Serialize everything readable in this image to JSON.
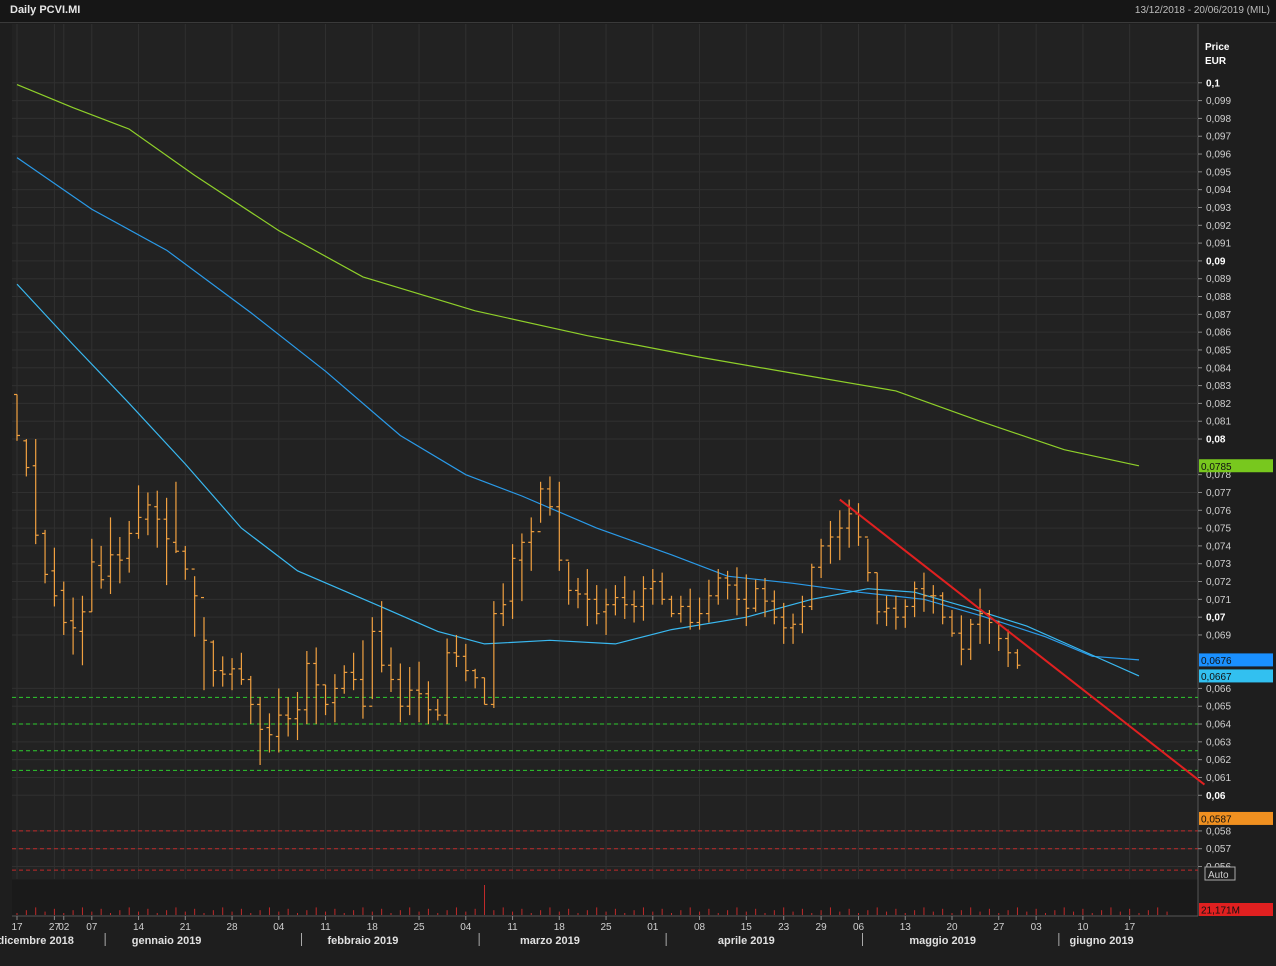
{
  "header": {
    "title": "Daily PCVI.MI",
    "range": "13/12/2018 - 20/06/2019 (MIL)"
  },
  "axis_title": {
    "line1": "Price",
    "line2": "EUR"
  },
  "auto_label": "Auto",
  "colors": {
    "bg": "#1e1e1e",
    "plot": "#222222",
    "grid": "#303030",
    "price": "#f0a040",
    "ma_green": "#8fd02a",
    "ma_blue1": "#2a9ae8",
    "ma_blue2": "#39b8f0",
    "trend": "#e02020",
    "green_dash": "#2ecc2e",
    "red_dash": "#c02a2a"
  },
  "chart_data": {
    "type": "ohlc",
    "title": "Daily PCVI.MI",
    "ylabel": "Price EUR",
    "ylim": [
      0.0553,
      0.1033
    ],
    "y_ticks": [
      {
        "v": 0.1,
        "t": "0,1",
        "bold": true
      },
      {
        "v": 0.099,
        "t": "0,099"
      },
      {
        "v": 0.098,
        "t": "0,098"
      },
      {
        "v": 0.097,
        "t": "0,097"
      },
      {
        "v": 0.096,
        "t": "0,096"
      },
      {
        "v": 0.095,
        "t": "0,095"
      },
      {
        "v": 0.094,
        "t": "0,094"
      },
      {
        "v": 0.093,
        "t": "0,093"
      },
      {
        "v": 0.092,
        "t": "0,092"
      },
      {
        "v": 0.091,
        "t": "0,091"
      },
      {
        "v": 0.09,
        "t": "0,09",
        "bold": true
      },
      {
        "v": 0.089,
        "t": "0,089"
      },
      {
        "v": 0.088,
        "t": "0,088"
      },
      {
        "v": 0.087,
        "t": "0,087"
      },
      {
        "v": 0.086,
        "t": "0,086"
      },
      {
        "v": 0.085,
        "t": "0,085"
      },
      {
        "v": 0.084,
        "t": "0,084"
      },
      {
        "v": 0.083,
        "t": "0,083"
      },
      {
        "v": 0.082,
        "t": "0,082"
      },
      {
        "v": 0.081,
        "t": "0,081"
      },
      {
        "v": 0.08,
        "t": "0,08",
        "bold": true
      },
      {
        "v": 0.078,
        "t": "0,078"
      },
      {
        "v": 0.077,
        "t": "0,077"
      },
      {
        "v": 0.076,
        "t": "0,076"
      },
      {
        "v": 0.075,
        "t": "0,075"
      },
      {
        "v": 0.074,
        "t": "0,074"
      },
      {
        "v": 0.073,
        "t": "0,073"
      },
      {
        "v": 0.072,
        "t": "0,072"
      },
      {
        "v": 0.071,
        "t": "0,071"
      },
      {
        "v": 0.07,
        "t": "0,07",
        "bold": true
      },
      {
        "v": 0.069,
        "t": "0,069"
      },
      {
        "v": 0.066,
        "t": "0,066"
      },
      {
        "v": 0.065,
        "t": "0,065"
      },
      {
        "v": 0.064,
        "t": "0,064"
      },
      {
        "v": 0.063,
        "t": "0,063"
      },
      {
        "v": 0.062,
        "t": "0,062"
      },
      {
        "v": 0.061,
        "t": "0,061"
      },
      {
        "v": 0.06,
        "t": "0,06",
        "bold": true
      },
      {
        "v": 0.058,
        "t": "0,058"
      },
      {
        "v": 0.057,
        "t": "0,057"
      },
      {
        "v": 0.056,
        "t": "0,056"
      }
    ],
    "x_ticks": [
      {
        "i": 0,
        "t": "17"
      },
      {
        "i": 4,
        "t": "27"
      },
      {
        "i": 5,
        "t": "02"
      },
      {
        "i": 8,
        "t": "07"
      },
      {
        "i": 13,
        "t": "14"
      },
      {
        "i": 18,
        "t": "21"
      },
      {
        "i": 23,
        "t": "28"
      },
      {
        "i": 28,
        "t": "04"
      },
      {
        "i": 33,
        "t": "11"
      },
      {
        "i": 38,
        "t": "18"
      },
      {
        "i": 43,
        "t": "25"
      },
      {
        "i": 48,
        "t": "04"
      },
      {
        "i": 53,
        "t": "11"
      },
      {
        "i": 58,
        "t": "18"
      },
      {
        "i": 63,
        "t": "25"
      },
      {
        "i": 68,
        "t": "01"
      },
      {
        "i": 73,
        "t": "08"
      },
      {
        "i": 78,
        "t": "15"
      },
      {
        "i": 82,
        "t": "23"
      },
      {
        "i": 86,
        "t": "29"
      },
      {
        "i": 90,
        "t": "06"
      },
      {
        "i": 95,
        "t": "13"
      },
      {
        "i": 100,
        "t": "20"
      },
      {
        "i": 105,
        "t": "27"
      },
      {
        "i": 109,
        "t": "03"
      },
      {
        "i": 114,
        "t": "10"
      },
      {
        "i": 119,
        "t": "17"
      }
    ],
    "months": [
      {
        "i": 2,
        "t": "dicembre 2018"
      },
      {
        "i": 16,
        "t": "gennaio 2019"
      },
      {
        "i": 37,
        "t": "febbraio 2019"
      },
      {
        "i": 57,
        "t": "marzo 2019"
      },
      {
        "i": 78,
        "t": "aprile 2019"
      },
      {
        "i": 99,
        "t": "maggio 2019"
      },
      {
        "i": 116,
        "t": "giugno 2019"
      }
    ],
    "month_separators": [
      9,
      30,
      49,
      69,
      90,
      111
    ],
    "n_slots": 124,
    "price_bars": [
      [
        0.0825,
        0.0799,
        0.0825,
        0.0802
      ],
      [
        0.08,
        0.0779,
        0.0799,
        0.0784
      ],
      [
        0.08,
        0.0741,
        0.0785,
        0.0746
      ],
      [
        0.0749,
        0.0719,
        0.0747,
        0.0724
      ],
      [
        0.0739,
        0.0706,
        0.0726,
        0.0712
      ],
      [
        0.072,
        0.069,
        0.0715,
        0.0697
      ],
      [
        0.0711,
        0.0679,
        0.0698,
        0.0694
      ],
      [
        0.0712,
        0.0673,
        0.0692,
        0.0703
      ],
      [
        0.0744,
        0.0703,
        0.0703,
        0.0731
      ],
      [
        0.074,
        0.0716,
        0.0729,
        0.0721
      ],
      [
        0.0756,
        0.0713,
        0.0723,
        0.0735
      ],
      [
        0.0745,
        0.0719,
        0.0735,
        0.0732
      ],
      [
        0.0754,
        0.0725,
        0.0733,
        0.0747
      ],
      [
        0.0774,
        0.0744,
        0.0747,
        0.0756
      ],
      [
        0.077,
        0.0746,
        0.0755,
        0.0763
      ],
      [
        0.0771,
        0.0739,
        0.0762,
        0.0755
      ],
      [
        0.0767,
        0.0718,
        0.0755,
        0.0744
      ],
      [
        0.0776,
        0.0736,
        0.0742,
        0.0737
      ],
      [
        0.074,
        0.0721,
        0.0737,
        0.0727
      ],
      [
        0.0723,
        0.0689,
        0.0727,
        0.0712
      ],
      [
        0.07,
        0.0659,
        0.0711,
        0.0687
      ],
      [
        0.0687,
        0.0661,
        0.0686,
        0.067
      ],
      [
        0.0678,
        0.0661,
        0.067,
        0.0668
      ],
      [
        0.0677,
        0.0659,
        0.0668,
        0.0671
      ],
      [
        0.068,
        0.0662,
        0.0671,
        0.0665
      ],
      [
        0.0667,
        0.064,
        0.0665,
        0.0651
      ],
      [
        0.0655,
        0.0617,
        0.0651,
        0.0637
      ],
      [
        0.0646,
        0.0624,
        0.0638,
        0.0634
      ],
      [
        0.066,
        0.0624,
        0.0633,
        0.0645
      ],
      [
        0.0655,
        0.0633,
        0.0645,
        0.0643
      ],
      [
        0.0658,
        0.0631,
        0.0643,
        0.0648
      ],
      [
        0.0681,
        0.064,
        0.0648,
        0.0674
      ],
      [
        0.0683,
        0.064,
        0.0674,
        0.0662
      ],
      [
        0.0662,
        0.0645,
        0.0662,
        0.0651
      ],
      [
        0.0668,
        0.0641,
        0.0652,
        0.066
      ],
      [
        0.0673,
        0.0657,
        0.066,
        0.0669
      ],
      [
        0.068,
        0.0659,
        0.0669,
        0.0665
      ],
      [
        0.0687,
        0.0643,
        0.0665,
        0.065
      ],
      [
        0.07,
        0.0654,
        0.065,
        0.0692
      ],
      [
        0.0709,
        0.0669,
        0.0692,
        0.0673
      ],
      [
        0.0683,
        0.0658,
        0.0673,
        0.0665
      ],
      [
        0.0674,
        0.0641,
        0.0665,
        0.065
      ],
      [
        0.0672,
        0.0645,
        0.065,
        0.0659
      ],
      [
        0.0675,
        0.0641,
        0.0659,
        0.0657
      ],
      [
        0.0664,
        0.064,
        0.0657,
        0.0648
      ],
      [
        0.0654,
        0.0642,
        0.0648,
        0.0645
      ],
      [
        0.0688,
        0.064,
        0.0645,
        0.068
      ],
      [
        0.069,
        0.0672,
        0.068,
        0.0678
      ],
      [
        0.0685,
        0.0664,
        0.0678,
        0.067
      ],
      [
        0.0671,
        0.066,
        0.067,
        0.0666
      ],
      [
        0.0666,
        0.0651,
        0.0666,
        0.0651
      ],
      [
        0.0709,
        0.0649,
        0.0651,
        0.0702
      ],
      [
        0.0719,
        0.0695,
        0.0702,
        0.0707
      ],
      [
        0.0741,
        0.0699,
        0.0709,
        0.0733
      ],
      [
        0.0747,
        0.0709,
        0.0732,
        0.0742
      ],
      [
        0.0756,
        0.0726,
        0.0742,
        0.0748
      ],
      [
        0.0776,
        0.0753,
        0.0748,
        0.0772
      ],
      [
        0.0779,
        0.0757,
        0.0772,
        0.0762
      ],
      [
        0.0776,
        0.0726,
        0.0762,
        0.0732
      ],
      [
        0.0731,
        0.0707,
        0.0732,
        0.0715
      ],
      [
        0.0722,
        0.0705,
        0.0715,
        0.0713
      ],
      [
        0.0727,
        0.0695,
        0.0713,
        0.071
      ],
      [
        0.0718,
        0.0696,
        0.071,
        0.0702
      ],
      [
        0.0716,
        0.069,
        0.0703,
        0.0707
      ],
      [
        0.0718,
        0.0701,
        0.0707,
        0.0711
      ],
      [
        0.0723,
        0.0699,
        0.0711,
        0.0707
      ],
      [
        0.0715,
        0.0697,
        0.0707,
        0.0706
      ],
      [
        0.0723,
        0.0698,
        0.0706,
        0.0716
      ],
      [
        0.0727,
        0.0707,
        0.0716,
        0.072
      ],
      [
        0.0725,
        0.0707,
        0.072,
        0.071
      ],
      [
        0.0712,
        0.07,
        0.071,
        0.0702
      ],
      [
        0.0712,
        0.0697,
        0.0702,
        0.0706
      ],
      [
        0.0716,
        0.0693,
        0.0706,
        0.0697
      ],
      [
        0.0711,
        0.0693,
        0.0697,
        0.0702
      ],
      [
        0.0721,
        0.0697,
        0.0702,
        0.0712
      ],
      [
        0.0727,
        0.0707,
        0.0712,
        0.0722
      ],
      [
        0.0726,
        0.071,
        0.0722,
        0.0718
      ],
      [
        0.0728,
        0.0701,
        0.0718,
        0.071
      ],
      [
        0.0724,
        0.0695,
        0.071,
        0.0705
      ],
      [
        0.0721,
        0.0703,
        0.0705,
        0.0716
      ],
      [
        0.0722,
        0.07,
        0.0716,
        0.0709
      ],
      [
        0.0715,
        0.0696,
        0.0709,
        0.07
      ],
      [
        0.0708,
        0.0685,
        0.07,
        0.0694
      ],
      [
        0.0702,
        0.0685,
        0.0694,
        0.0696
      ],
      [
        0.0712,
        0.0691,
        0.0696,
        0.0706
      ],
      [
        0.073,
        0.0704,
        0.0706,
        0.0728
      ],
      [
        0.0744,
        0.0722,
        0.0728,
        0.074
      ],
      [
        0.0754,
        0.073,
        0.074,
        0.0745
      ],
      [
        0.076,
        0.0732,
        0.0745,
        0.075
      ],
      [
        0.0766,
        0.0739,
        0.075,
        0.0758
      ],
      [
        0.0764,
        0.074,
        0.0758,
        0.0745
      ],
      [
        0.0744,
        0.072,
        0.0745,
        0.0725
      ],
      [
        0.0725,
        0.0696,
        0.0725,
        0.0703
      ],
      [
        0.0712,
        0.0695,
        0.0703,
        0.0705
      ],
      [
        0.0712,
        0.0693,
        0.0705,
        0.07
      ],
      [
        0.071,
        0.0694,
        0.07,
        0.0706
      ],
      [
        0.072,
        0.07,
        0.0706,
        0.0716
      ],
      [
        0.0725,
        0.0703,
        0.0716,
        0.0712
      ],
      [
        0.0718,
        0.0702,
        0.0712,
        0.0712
      ],
      [
        0.0714,
        0.0696,
        0.0712,
        0.07
      ],
      [
        0.0704,
        0.0689,
        0.07,
        0.0691
      ],
      [
        0.0701,
        0.0673,
        0.0691,
        0.0682
      ],
      [
        0.0699,
        0.0676,
        0.0682,
        0.0696
      ],
      [
        0.0716,
        0.0685,
        0.0696,
        0.0702
      ],
      [
        0.0704,
        0.0685,
        0.0702,
        0.0697
      ],
      [
        0.0698,
        0.0681,
        0.0697,
        0.0688
      ],
      [
        0.0693,
        0.0672,
        0.0688,
        0.068
      ],
      [
        0.0682,
        0.0671,
        0.068,
        0.0673
      ]
    ],
    "series": [
      {
        "name": "",
        "role": "moving-average",
        "color": "#8fd02a",
        "points": [
          [
            0,
            0.0999
          ],
          [
            6,
            0.0986
          ],
          [
            12,
            0.0974
          ],
          [
            19,
            0.0948
          ],
          [
            28,
            0.0917
          ],
          [
            37,
            0.0891
          ],
          [
            49,
            0.0872
          ],
          [
            61,
            0.0858
          ],
          [
            73,
            0.0846
          ],
          [
            84,
            0.0836
          ],
          [
            94,
            0.0827
          ],
          [
            103,
            0.081
          ],
          [
            112,
            0.0794
          ],
          [
            120,
            0.0785
          ]
        ]
      },
      {
        "name": "",
        "role": "moving-average",
        "color": "#2a9ae8",
        "points": [
          [
            0,
            0.0958
          ],
          [
            8,
            0.0929
          ],
          [
            16,
            0.0906
          ],
          [
            25,
            0.0871
          ],
          [
            33,
            0.0838
          ],
          [
            41,
            0.0802
          ],
          [
            48,
            0.078
          ],
          [
            54,
            0.0768
          ],
          [
            62,
            0.075
          ],
          [
            70,
            0.0735
          ],
          [
            76,
            0.0723
          ],
          [
            83,
            0.0719
          ],
          [
            90,
            0.0714
          ],
          [
            97,
            0.071
          ],
          [
            103,
            0.0701
          ],
          [
            110,
            0.0689
          ],
          [
            115,
            0.0678
          ],
          [
            120,
            0.0676
          ]
        ]
      },
      {
        "name": "",
        "role": "moving-average",
        "color": "#39b8f0",
        "points": [
          [
            0,
            0.0887
          ],
          [
            6,
            0.0853
          ],
          [
            12,
            0.082
          ],
          [
            18,
            0.0786
          ],
          [
            24,
            0.075
          ],
          [
            30,
            0.0726
          ],
          [
            38,
            0.0708
          ],
          [
            45,
            0.0692
          ],
          [
            50,
            0.0685
          ],
          [
            57,
            0.0687
          ],
          [
            64,
            0.0685
          ],
          [
            70,
            0.0693
          ],
          [
            78,
            0.07
          ],
          [
            85,
            0.071
          ],
          [
            91,
            0.0716
          ],
          [
            96,
            0.0714
          ],
          [
            102,
            0.0705
          ],
          [
            108,
            0.0695
          ],
          [
            114,
            0.0681
          ],
          [
            120,
            0.0667
          ]
        ]
      }
    ],
    "trendline": [
      [
        88,
        0.0766
      ],
      [
        127,
        0.0606
      ]
    ],
    "support_lines_green": [
      0.0655,
      0.064,
      0.0625,
      0.0614
    ],
    "support_lines_red": [
      0.058,
      0.057,
      0.0558
    ],
    "value_tags": [
      {
        "v": 0.0785,
        "t": "0,0785",
        "color": "#78c81e"
      },
      {
        "v": 0.0676,
        "t": "0,0676",
        "color": "#1a90ff"
      },
      {
        "v": 0.0667,
        "t": "0,0667",
        "color": "#32c0f0"
      },
      {
        "v": 0.0587,
        "t": "0,0587",
        "color": "#f09020"
      }
    ],
    "volume": {
      "tag": "21,171M",
      "tag_color": "#e02020",
      "max_label": "",
      "spike_index": 50
    }
  }
}
